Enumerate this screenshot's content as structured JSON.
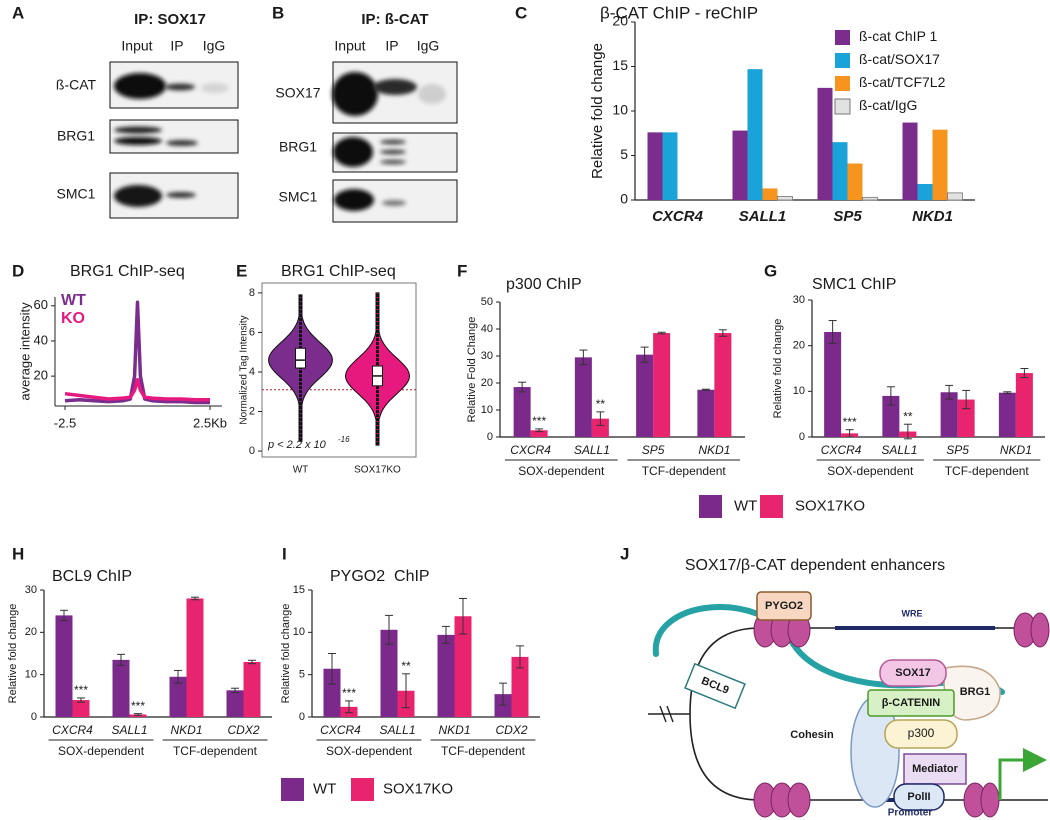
{
  "panel_labels": [
    "A",
    "B",
    "C",
    "D",
    "E",
    "F",
    "G",
    "H",
    "I",
    "J"
  ],
  "blots": [
    {
      "title": "IP: SOX17",
      "lanes": [
        "Input",
        "IP",
        "IgG"
      ],
      "rows": [
        "ß-CAT",
        "BRG1",
        "SMC1"
      ]
    },
    {
      "title": "IP: ß-CAT",
      "lanes": [
        "Input",
        "IP",
        "IgG"
      ],
      "rows": [
        "SOX17",
        "BRG1",
        "SMC1"
      ]
    }
  ],
  "chart_data": [
    {
      "type": "bar",
      "title": "β-CAT ChIP - reChIP",
      "y_label": "Relative fold change",
      "categories": [
        "CXCR4",
        "SALL1",
        "SP5",
        "NKD1"
      ],
      "series": [
        {
          "name": "ß-cat ChIP 1",
          "color": "#7b2d8e",
          "values": [
            7.6,
            7.8,
            12.6,
            8.7
          ]
        },
        {
          "name": "ß-cat/SOX17",
          "color": "#1aa3d9",
          "values": [
            7.6,
            14.7,
            6.5,
            1.8
          ]
        },
        {
          "name": "ß-cat/TCF7L2",
          "color": "#f7941d",
          "values": [
            0,
            1.3,
            4.1,
            7.9
          ]
        },
        {
          "name": "ß-cat/IgG",
          "color": "#e2e2e2",
          "values": [
            0,
            0.4,
            0.3,
            0.8
          ]
        }
      ],
      "ylim": [
        0,
        20
      ],
      "yticks": [
        0,
        5,
        10,
        15,
        20
      ]
    },
    {
      "type": "line",
      "title": "BRG1 ChIP-seq",
      "y_label": "average intensity",
      "x": [
        -2.5,
        -2,
        -1.5,
        -1,
        -0.5,
        -0.25,
        -0.1,
        0,
        0.1,
        0.25,
        0.5,
        1,
        1.5,
        2,
        2.5
      ],
      "series": [
        {
          "name": "WT",
          "color": "#7b2d8e",
          "values": [
            6,
            6.5,
            6,
            5.5,
            6,
            7,
            20,
            62,
            20,
            7,
            6,
            5.5,
            5.5,
            5,
            5
          ]
        },
        {
          "name": "KO",
          "color": "#e6197f",
          "values": [
            10,
            9,
            8,
            7,
            7.5,
            8,
            12,
            18,
            12,
            8,
            7.5,
            7,
            7,
            6.5,
            6.5
          ]
        }
      ],
      "xlim": [
        -2.5,
        2.5
      ],
      "xticks": [
        -2.5,
        {
          "value": 2.5,
          "label": "2.5Kb"
        }
      ],
      "ylim": [
        3,
        65
      ],
      "yticks": [
        20,
        40,
        60
      ]
    },
    {
      "type": "violin",
      "title": "BRG1 ChIP-seq",
      "y_label": "Normalized Tag Intensity",
      "categories": [
        "WT",
        "SOX17KO"
      ],
      "colors": [
        "#7b2d8e",
        "#e6197f"
      ],
      "stats": [
        {
          "min": 0.5,
          "q1": 4.2,
          "median": 4.6,
          "q3": 5.2,
          "max": 7.9
        },
        {
          "min": 0.3,
          "q1": 3.3,
          "median": 3.8,
          "q3": 4.3,
          "max": 8
        }
      ],
      "hline": 3.1,
      "annotation": "p < 2.2 x 10",
      "annotation_exponent": "-16",
      "ylim": [
        -0.3,
        8.5
      ],
      "yticks": [
        0,
        2,
        4,
        6,
        8
      ]
    },
    {
      "type": "bar",
      "title": "p300 ChIP",
      "y_label": "Relative Fold Change",
      "categories": [
        "CXCR4",
        "SALL1",
        "SP5",
        "NKD1"
      ],
      "group_labels": [
        "SOX-dependent",
        "TCF-dependent"
      ],
      "series": [
        {
          "name": "WT",
          "color": "#7b2a8c",
          "values": [
            18.5,
            29.5,
            30.5,
            17.5
          ],
          "errors": [
            1.8,
            2.7,
            2.8,
            0.2
          ]
        },
        {
          "name": "SOX17KO",
          "color": "#e8246f",
          "values": [
            2.5,
            6.8,
            38.5,
            38.5
          ],
          "errors": [
            0.5,
            2.5,
            0.3,
            1.2
          ]
        }
      ],
      "annotations": [
        "***",
        "**",
        null,
        null
      ],
      "ylim": [
        0,
        50
      ],
      "yticks": [
        0,
        10,
        20,
        30,
        40,
        50
      ]
    },
    {
      "type": "bar",
      "title": "SMC1 ChIP",
      "y_label": "Relative fold change",
      "categories": [
        "CXCR4",
        "SALL1",
        "SP5",
        "NKD1"
      ],
      "group_labels": [
        "SOX-dependent",
        "TCF-dependent"
      ],
      "series": [
        {
          "color": "#7b2a8c",
          "values": [
            23,
            9,
            9.8,
            9.7
          ],
          "errors": [
            2.5,
            2,
            1.5,
            0.2
          ]
        },
        {
          "color": "#e8246f",
          "values": [
            0.8,
            1.2,
            8.2,
            14
          ],
          "errors": [
            0.8,
            1.6,
            2,
            1
          ]
        }
      ],
      "annotations": [
        "***",
        "**",
        null,
        null
      ],
      "ylim": [
        0,
        30
      ],
      "yticks": [
        0,
        10,
        20,
        30
      ]
    },
    {
      "type": "bar",
      "title": "BCL9 ChIP",
      "y_label": "Relative fold change",
      "categories": [
        "CXCR4",
        "SALL1",
        "NKD1",
        "CDX2"
      ],
      "group_labels": [
        "SOX-dependent",
        "TCF-dependent"
      ],
      "series": [
        {
          "color": "#7b2a8c",
          "values": [
            24,
            13.5,
            9.5,
            6.3
          ],
          "errors": [
            1.2,
            1.3,
            1.5,
            0.5
          ]
        },
        {
          "color": "#e8246f",
          "values": [
            4,
            0.6,
            28,
            13
          ],
          "errors": [
            0.5,
            0.2,
            0.3,
            0.4
          ]
        }
      ],
      "annotations": [
        "***",
        "***",
        null,
        null
      ],
      "ylim": [
        0,
        30
      ],
      "yticks": [
        0,
        10,
        20,
        30
      ]
    },
    {
      "type": "bar",
      "title": "PYGO2  ChIP",
      "y_label": "Relative fold change",
      "categories": [
        "CXCR4",
        "SALL1",
        "NKD1",
        "CDX2"
      ],
      "group_labels": [
        "SOX-dependent",
        "TCF-dependent"
      ],
      "series": [
        {
          "name": "WT",
          "color": "#7b2a8c",
          "values": [
            5.7,
            10.3,
            9.7,
            2.7
          ],
          "errors": [
            1.8,
            1.7,
            1,
            1.3
          ]
        },
        {
          "name": "SOX17KO",
          "color": "#e8246f",
          "values": [
            1.2,
            3.1,
            11.9,
            7.1
          ],
          "errors": [
            0.7,
            2,
            2.1,
            1.3
          ]
        }
      ],
      "annotations": [
        "***",
        "**",
        null,
        null
      ],
      "ylim": [
        0,
        15
      ],
      "yticks": [
        0,
        5,
        10,
        15
      ]
    }
  ],
  "diagram": {
    "title": "SOX17/β-CAT dependent enhancers",
    "labels": [
      "PYGO2",
      "WRE",
      "SOX17",
      "BRG1",
      "β-CATENIN",
      "BCL9",
      "p300",
      "Cohesin",
      "Mediator",
      "PolII",
      "Promoter"
    ]
  }
}
